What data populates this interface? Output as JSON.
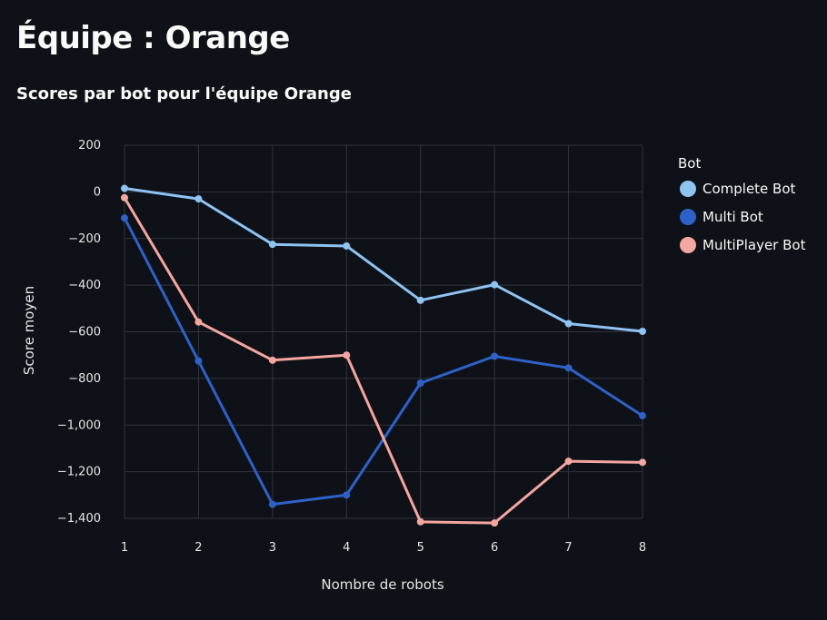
{
  "header": {
    "title": "Équipe : Orange"
  },
  "chart_data": {
    "type": "line",
    "title": "Scores par bot pour l'équipe Orange",
    "xlabel": "Nombre de robots",
    "ylabel": "Score moyen",
    "x": [
      1,
      2,
      3,
      4,
      5,
      6,
      7,
      8
    ],
    "x_tick_labels": [
      "1",
      "2",
      "3",
      "4",
      "5",
      "6",
      "7",
      "8"
    ],
    "ylim": [
      -1400,
      200
    ],
    "y_ticks": [
      200,
      0,
      -200,
      -400,
      -600,
      -800,
      -1000,
      -1200,
      -1400
    ],
    "y_tick_labels": [
      "200",
      "0",
      "−200",
      "−400",
      "−600",
      "−800",
      "−1,000",
      "−1,200",
      "−1,400"
    ],
    "grid": true,
    "legend": {
      "title": "Bot",
      "position": "right"
    },
    "series": [
      {
        "name": "Complete Bot",
        "color": "#8fc3f2",
        "values": [
          15,
          -30,
          -225,
          -232,
          -465,
          -398,
          -565,
          -598
        ]
      },
      {
        "name": "Multi Bot",
        "color": "#2e62c9",
        "values": [
          -112,
          -725,
          -1340,
          -1300,
          -820,
          -705,
          -755,
          -960
        ]
      },
      {
        "name": "MultiPlayer Bot",
        "color": "#f4a6a0",
        "values": [
          -25,
          -558,
          -722,
          -700,
          -1415,
          -1420,
          -1155,
          -1160
        ]
      }
    ]
  }
}
